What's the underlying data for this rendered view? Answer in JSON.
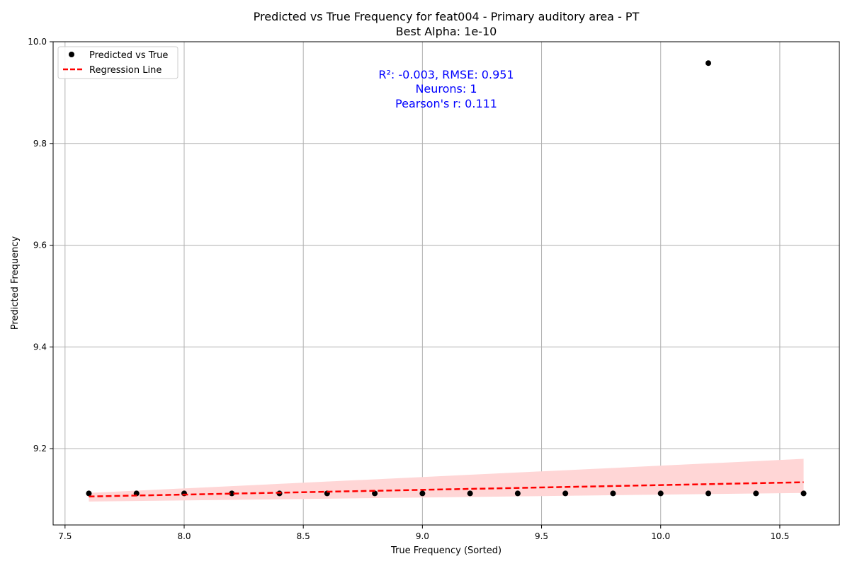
{
  "chart_data": {
    "type": "scatter",
    "title": "Predicted vs True Frequency for feat004 - Primary auditory area - PT",
    "subtitle": "Best Alpha: 1e-10",
    "xlabel": "True Frequency (Sorted)",
    "ylabel": "Predicted Frequency",
    "xlim": [
      7.45,
      10.75
    ],
    "ylim": [
      9.05,
      10.0
    ],
    "x_ticks": [
      "7.5",
      "8.0",
      "8.5",
      "9.0",
      "9.5",
      "10.0",
      "10.5"
    ],
    "y_ticks": [
      "9.2",
      "9.4",
      "9.6",
      "9.8",
      "10.0"
    ],
    "grid": true,
    "legend_position": "top-left",
    "legend": {
      "points_label": "Predicted vs True",
      "line_label": "Regression Line"
    },
    "annotation": {
      "line1": "R²: -0.003, RMSE: 0.951",
      "line2": "Neurons: 1",
      "line3": "Pearson's r: 0.111",
      "color": "#0000ff"
    },
    "points": {
      "name": "Predicted vs True",
      "color": "#000000",
      "x": [
        7.6,
        7.8,
        8.0,
        8.2,
        8.4,
        8.6,
        8.8,
        9.0,
        9.2,
        9.4,
        9.6,
        9.8,
        10.0,
        10.2,
        10.2,
        10.4,
        10.6
      ],
      "y": [
        9.112,
        9.112,
        9.112,
        9.112,
        9.112,
        9.112,
        9.112,
        9.112,
        9.112,
        9.112,
        9.112,
        9.112,
        9.112,
        9.112,
        9.958,
        9.112,
        9.112
      ]
    },
    "regression": {
      "name": "Regression Line",
      "color": "#ff0000",
      "x": [
        7.6,
        10.6
      ],
      "y": [
        9.106,
        9.134
      ]
    },
    "confidence_band": {
      "color": "#ffd6d6",
      "x": [
        7.6,
        10.6
      ],
      "lower": [
        9.096,
        9.113
      ],
      "upper": [
        9.113,
        9.18
      ]
    }
  }
}
